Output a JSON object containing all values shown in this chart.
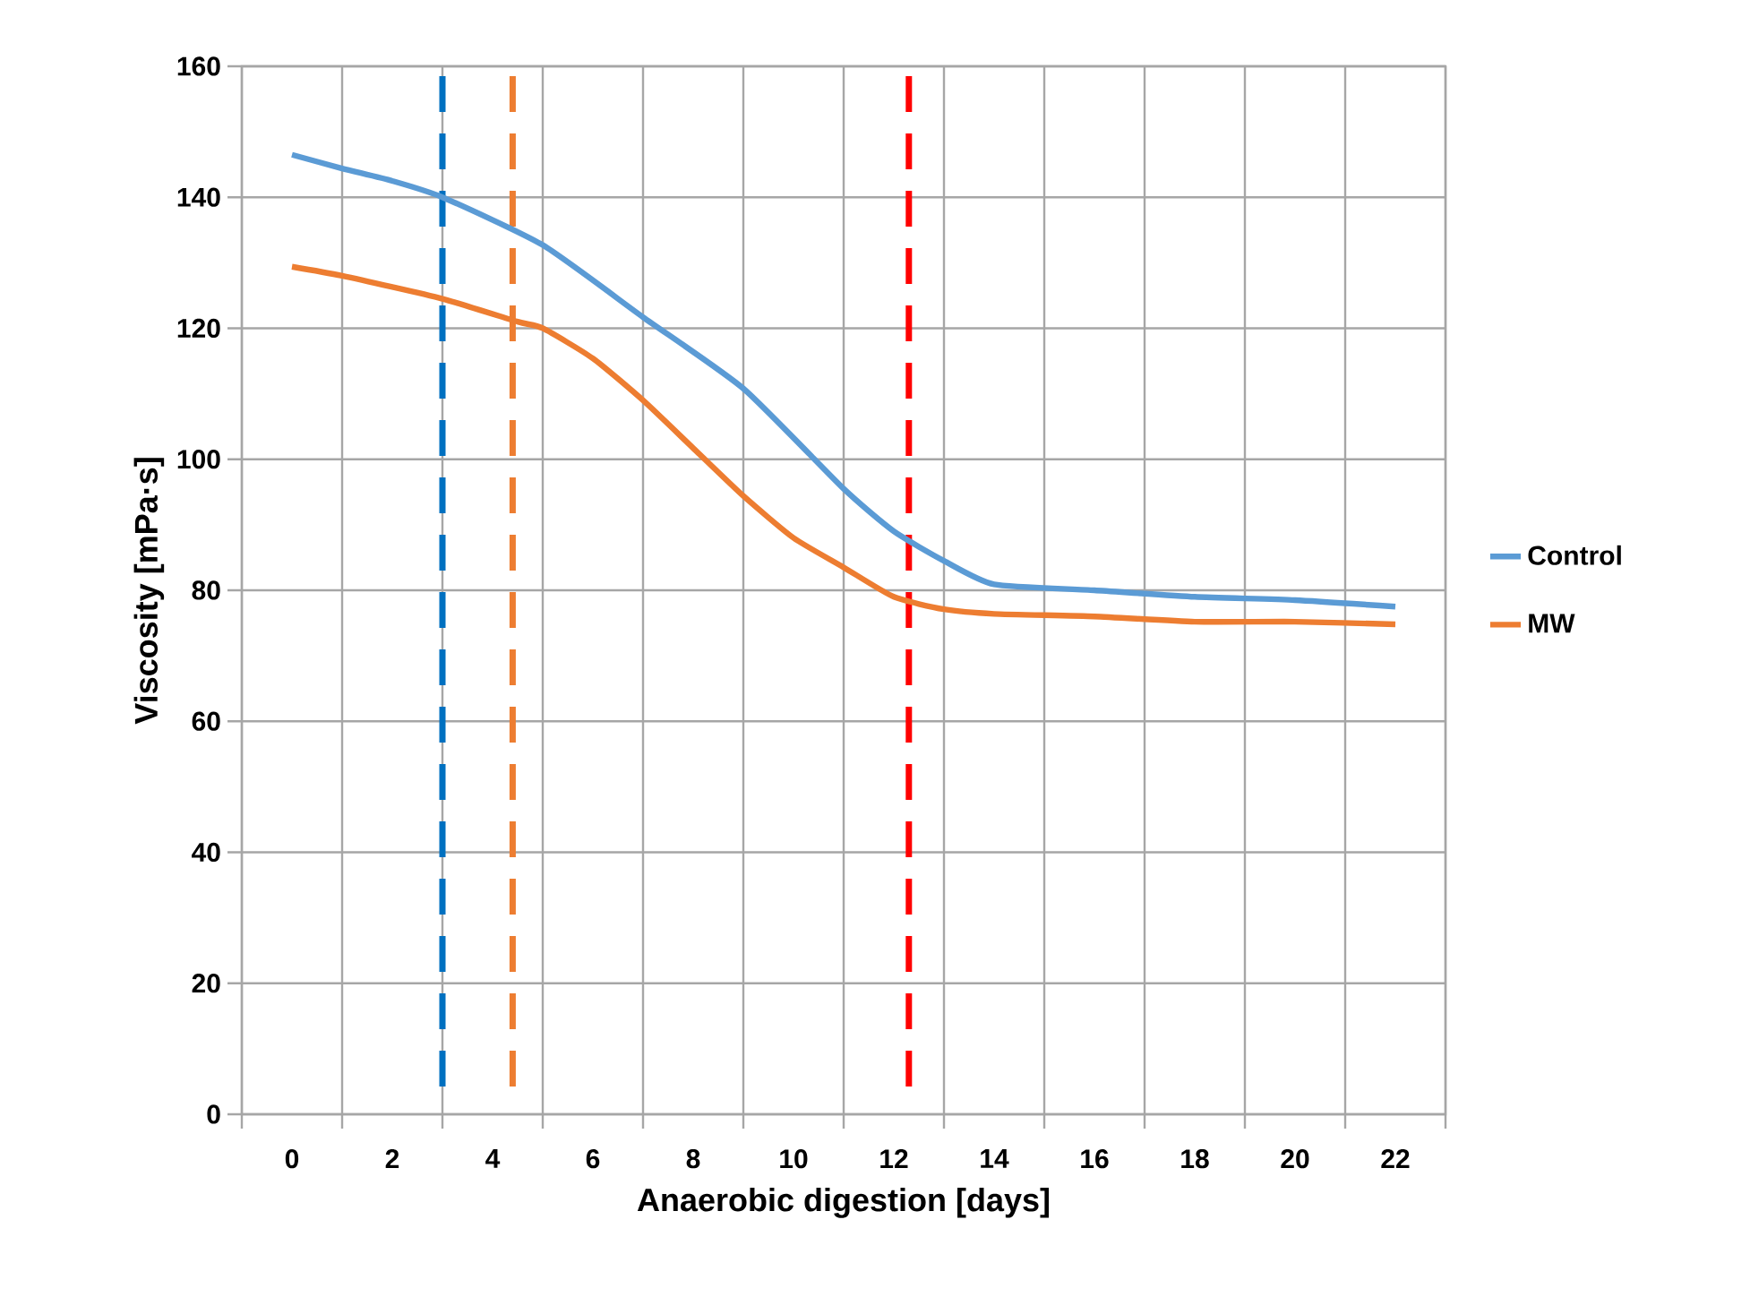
{
  "chart_data": {
    "type": "line",
    "xlabel": "Anaerobic digestion [days]",
    "ylabel": "Viscosity [mPa·s]",
    "xlim": [
      -1,
      23
    ],
    "xticks": [
      {
        "value": -1,
        "label": null
      },
      0,
      {
        "value": 1,
        "label": null
      },
      2,
      {
        "value": 3,
        "label": null
      },
      4,
      {
        "value": 5,
        "label": null
      },
      6,
      {
        "value": 7,
        "label": null
      },
      8,
      {
        "value": 9,
        "label": null
      },
      10,
      {
        "value": 11,
        "label": null
      },
      12,
      {
        "value": 13,
        "label": null
      },
      14,
      {
        "value": 15,
        "label": null
      },
      16,
      {
        "value": 17,
        "label": null
      },
      18,
      {
        "value": 19,
        "label": null
      },
      20,
      {
        "value": 21,
        "label": null
      },
      22,
      {
        "value": 23,
        "label": null
      }
    ],
    "ylim": [
      0,
      160
    ],
    "yticks": [
      0,
      20,
      40,
      60,
      80,
      100,
      120,
      140,
      160
    ],
    "grid": true,
    "legend": "right",
    "marker": "none",
    "line_style": "solid",
    "series": [
      {
        "name": "Control",
        "color": "#5b9bd5",
        "x": [
          0,
          1,
          2,
          3,
          5,
          7,
          9,
          11,
          12,
          13,
          14,
          16,
          18,
          20,
          22
        ],
        "values": [
          146.5,
          144.4,
          142.5,
          140,
          132.7,
          121.7,
          110.8,
          95.5,
          89,
          84.5,
          80.9,
          80,
          79,
          78.5,
          77.5
        ]
      },
      {
        "name": "MW",
        "color": "#ed7d31",
        "x": [
          0,
          1,
          3,
          4.5,
          5,
          6,
          7,
          8,
          9,
          10,
          11,
          12,
          13,
          14,
          16,
          18,
          20,
          22
        ],
        "values": [
          129.4,
          128,
          124.5,
          121,
          120,
          115.4,
          109,
          101.7,
          94.4,
          88,
          83.5,
          79,
          77.1,
          76.4,
          76,
          75.2,
          75.2,
          74.8
        ]
      }
    ],
    "ref_lines": [
      {
        "axis": "x",
        "value": 3,
        "color": "#0070c0",
        "line_style": "dashed"
      },
      {
        "axis": "x",
        "value": 4.4,
        "color": "#ed7d31",
        "line_style": "dashed"
      },
      {
        "axis": "x",
        "value": 12.3,
        "color": "#ff0000",
        "line_style": "dashed"
      }
    ]
  }
}
